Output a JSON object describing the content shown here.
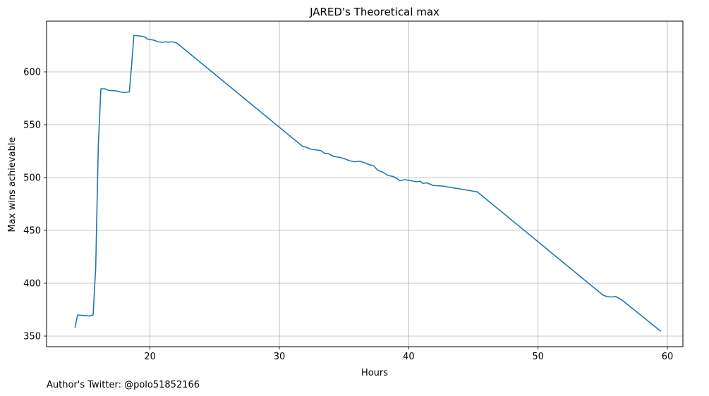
{
  "chart_data": {
    "type": "line",
    "title": "JARED's Theoretical max",
    "xlabel": "Hours",
    "ylabel": "Max wins achievable",
    "xlim": [
      12,
      61.2
    ],
    "ylim": [
      340,
      648
    ],
    "xticks": [
      20,
      30,
      40,
      50,
      60
    ],
    "yticks": [
      350,
      400,
      450,
      500,
      550,
      600
    ],
    "grid": true,
    "series": [
      {
        "color": "#1f77b4",
        "points": [
          [
            14.2,
            358
          ],
          [
            14.4,
            370
          ],
          [
            14.9,
            369.5
          ],
          [
            15.3,
            369
          ],
          [
            15.6,
            370
          ],
          [
            15.8,
            415
          ],
          [
            16.0,
            530
          ],
          [
            16.2,
            584
          ],
          [
            16.5,
            584
          ],
          [
            16.8,
            582.5
          ],
          [
            17.4,
            582
          ],
          [
            17.7,
            581
          ],
          [
            18.0,
            580.5
          ],
          [
            18.4,
            581
          ],
          [
            18.6,
            610
          ],
          [
            18.75,
            634.5
          ],
          [
            19.2,
            634
          ],
          [
            19.6,
            633
          ],
          [
            19.8,
            631
          ],
          [
            20.3,
            630
          ],
          [
            20.6,
            628.5
          ],
          [
            21.0,
            628
          ],
          [
            21.2,
            628.5
          ],
          [
            21.4,
            628
          ],
          [
            21.6,
            628.5
          ],
          [
            21.9,
            628
          ],
          [
            22.1,
            627
          ],
          [
            31.8,
            529.5
          ],
          [
            32.0,
            529
          ],
          [
            32.4,
            527
          ],
          [
            33.2,
            525.5
          ],
          [
            33.5,
            523
          ],
          [
            33.8,
            522.5
          ],
          [
            34.2,
            520
          ],
          [
            34.7,
            519
          ],
          [
            35.0,
            518
          ],
          [
            35.4,
            516
          ],
          [
            35.8,
            515
          ],
          [
            36.2,
            515.5
          ],
          [
            36.6,
            514
          ],
          [
            37.0,
            512
          ],
          [
            37.3,
            511
          ],
          [
            37.6,
            507
          ],
          [
            38.0,
            505
          ],
          [
            38.4,
            502
          ],
          [
            38.8,
            501
          ],
          [
            39.1,
            499
          ],
          [
            39.3,
            497
          ],
          [
            39.7,
            498
          ],
          [
            40.2,
            497
          ],
          [
            40.6,
            496
          ],
          [
            40.9,
            496.5
          ],
          [
            41.1,
            494.5
          ],
          [
            41.4,
            495
          ],
          [
            41.9,
            492.5
          ],
          [
            42.6,
            492
          ],
          [
            45.3,
            486.5
          ],
          [
            55.0,
            389
          ],
          [
            55.3,
            387.5
          ],
          [
            55.7,
            387
          ],
          [
            56.0,
            387.5
          ],
          [
            56.5,
            384
          ],
          [
            59.5,
            354.5
          ]
        ]
      }
    ]
  },
  "footer": {
    "author_text": "Author's Twitter: @polo51852166"
  }
}
